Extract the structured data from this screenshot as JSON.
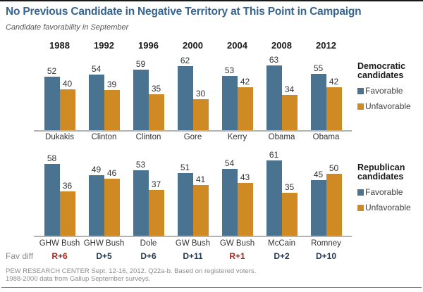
{
  "title": "No Previous Candidate in Negative Territory at This Point in Campaign",
  "subtitle": "Candidate favorability in September",
  "colors": {
    "title": "#36648e",
    "favorable": "#4a7291",
    "unfavorable": "#cf8a24",
    "diff_republican": "#a02c24",
    "diff_democratic": "#253b53"
  },
  "chart_data": [
    {
      "type": "bar",
      "party": "Democratic",
      "legend_title": "Democratic candidates",
      "legend_position": "right",
      "years": [
        "1988",
        "1992",
        "1996",
        "2000",
        "2004",
        "2008",
        "2012"
      ],
      "candidates": [
        "Dukakis",
        "Clinton",
        "Clinton",
        "Gore",
        "Kerry",
        "Obama",
        "Obama"
      ],
      "series": [
        {
          "name": "Favorable",
          "values": [
            52,
            54,
            59,
            62,
            53,
            63,
            55
          ]
        },
        {
          "name": "Unfavorable",
          "values": [
            40,
            39,
            35,
            30,
            42,
            34,
            42
          ]
        }
      ]
    },
    {
      "type": "bar",
      "party": "Republican",
      "legend_title": "Republican candidates",
      "legend_position": "right",
      "years": [
        "1988",
        "1992",
        "1996",
        "2000",
        "2004",
        "2008",
        "2012"
      ],
      "candidates": [
        "GHW Bush",
        "GHW Bush",
        "Dole",
        "GW Bush",
        "GW Bush",
        "McCain",
        "Romney"
      ],
      "series": [
        {
          "name": "Favorable",
          "values": [
            58,
            49,
            53,
            51,
            54,
            61,
            45
          ]
        },
        {
          "name": "Unfavorable",
          "values": [
            36,
            46,
            37,
            41,
            43,
            35,
            50
          ]
        }
      ],
      "fav_diff": {
        "label": "Fav diff",
        "values": [
          "R+6",
          "D+5",
          "D+6",
          "D+11",
          "R+1",
          "D+2",
          "D+10"
        ]
      }
    }
  ],
  "footer": {
    "line1": "PEW RESEARCH CENTER Sept. 12-16, 2012. Q22a-b. Based on registered voters.",
    "line2": "1988-2000 data from Gallup September surveys."
  }
}
